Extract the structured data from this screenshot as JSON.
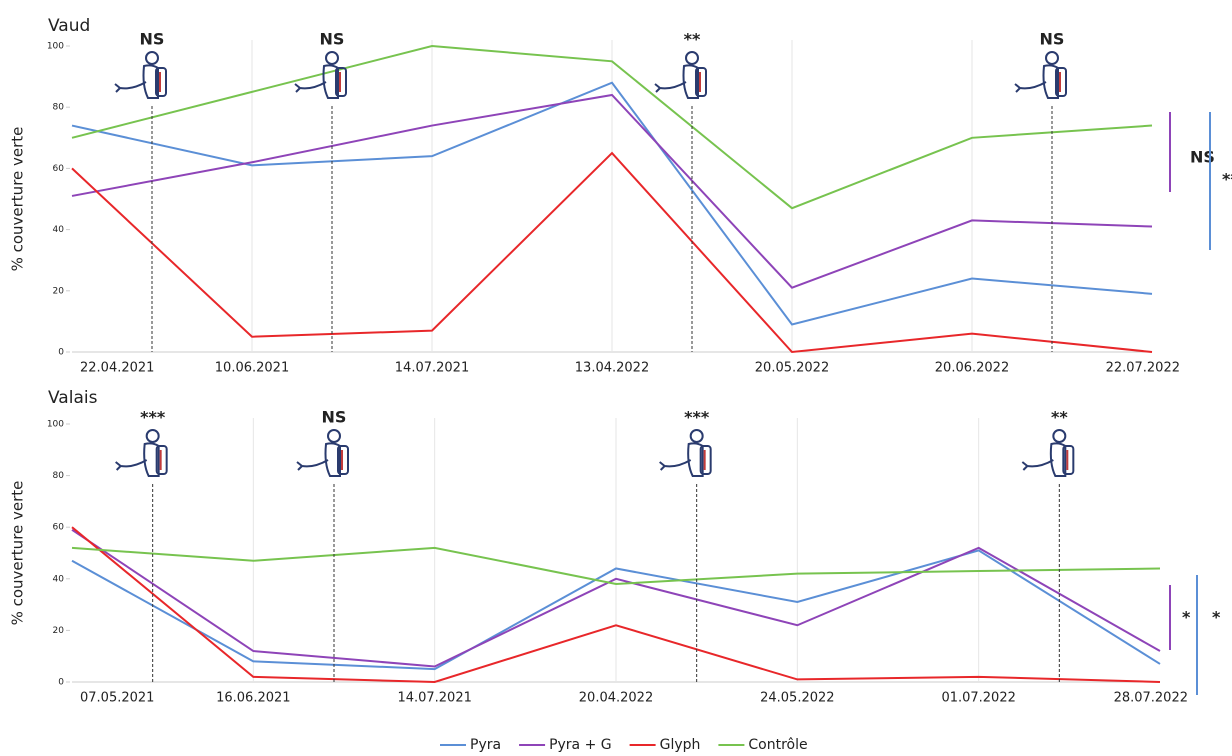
{
  "chart_data": [
    {
      "type": "line",
      "title": "Vaud",
      "ylabel": "% couverture verte",
      "categories": [
        "22.04.2021",
        "10.06.2021",
        "14.07.2021",
        "13.04.2022",
        "20.05.2022",
        "20.06.2022",
        "22.07.2022"
      ],
      "series": [
        {
          "name": "Pyra",
          "color": "#5b8fd6",
          "values": [
            74,
            61,
            64,
            88,
            9,
            24,
            19
          ]
        },
        {
          "name": "Pyra + G",
          "color": "#8e44b8",
          "values": [
            51,
            62,
            74,
            84,
            21,
            43,
            41
          ]
        },
        {
          "name": "Glyph",
          "color": "#e8272a",
          "values": [
            60,
            5,
            7,
            65,
            0,
            6,
            0
          ]
        },
        {
          "name": "Contrôle",
          "color": "#77c34f",
          "values": [
            70,
            85,
            100,
            95,
            47,
            70,
            74
          ]
        }
      ],
      "ylim": [
        0,
        100
      ],
      "yticks": [
        0,
        20,
        40,
        60,
        80,
        100
      ],
      "annotations": [
        "NS",
        "NS",
        "**",
        "NS"
      ],
      "significance": [
        {
          "label": "NS",
          "color": "#8e44b8"
        },
        {
          "label": "**",
          "color": "#5b8fd6"
        }
      ]
    },
    {
      "type": "line",
      "title": "Valais",
      "ylabel": "% couverture verte",
      "categories": [
        "07.05.2021",
        "16.06.2021",
        "14.07.2021",
        "20.04.2022",
        "24.05.2022",
        "01.07.2022",
        "28.07.2022"
      ],
      "series": [
        {
          "name": "Pyra",
          "color": "#5b8fd6",
          "values": [
            47,
            8,
            5,
            44,
            31,
            51,
            7
          ]
        },
        {
          "name": "Pyra + G",
          "color": "#8e44b8",
          "values": [
            59,
            12,
            6,
            40,
            22,
            52,
            12
          ]
        },
        {
          "name": "Glyph",
          "color": "#e8272a",
          "values": [
            60,
            2,
            0,
            22,
            1,
            2,
            0
          ]
        },
        {
          "name": "Contrôle",
          "color": "#77c34f",
          "values": [
            52,
            47,
            52,
            38,
            42,
            43,
            44
          ]
        }
      ],
      "ylim": [
        0,
        100
      ],
      "yticks": [
        0,
        20,
        40,
        60,
        80,
        100
      ],
      "annotations": [
        "***",
        "NS",
        "***",
        "**"
      ],
      "significance": [
        {
          "label": "*",
          "color": "#8e44b8"
        },
        {
          "label": "*",
          "color": "#5b8fd6"
        }
      ]
    }
  ]
}
